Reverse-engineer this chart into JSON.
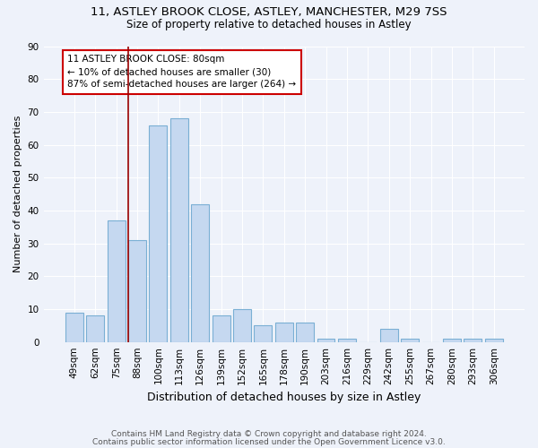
{
  "title1": "11, ASTLEY BROOK CLOSE, ASTLEY, MANCHESTER, M29 7SS",
  "title2": "Size of property relative to detached houses in Astley",
  "xlabel": "Distribution of detached houses by size in Astley",
  "ylabel": "Number of detached properties",
  "categories": [
    "49sqm",
    "62sqm",
    "75sqm",
    "88sqm",
    "100sqm",
    "113sqm",
    "126sqm",
    "139sqm",
    "152sqm",
    "165sqm",
    "178sqm",
    "190sqm",
    "203sqm",
    "216sqm",
    "229sqm",
    "242sqm",
    "255sqm",
    "267sqm",
    "280sqm",
    "293sqm",
    "306sqm"
  ],
  "values": [
    9,
    8,
    37,
    31,
    66,
    68,
    42,
    8,
    10,
    5,
    6,
    6,
    1,
    1,
    0,
    4,
    1,
    0,
    1,
    1,
    1
  ],
  "bar_color": "#c5d8f0",
  "bar_edge_color": "#7aafd4",
  "vline_color": "#990000",
  "annotation_text": "11 ASTLEY BROOK CLOSE: 80sqm\n← 10% of detached houses are smaller (30)\n87% of semi-detached houses are larger (264) →",
  "annotation_box_color": "#ffffff",
  "annotation_box_edge": "#cc0000",
  "ylim": [
    0,
    90
  ],
  "yticks": [
    0,
    10,
    20,
    30,
    40,
    50,
    60,
    70,
    80,
    90
  ],
  "footer1": "Contains HM Land Registry data © Crown copyright and database right 2024.",
  "footer2": "Contains public sector information licensed under the Open Government Licence v3.0.",
  "background_color": "#eef2fa",
  "grid_color": "#ffffff",
  "title1_fontsize": 9.5,
  "title2_fontsize": 8.5,
  "xlabel_fontsize": 9,
  "ylabel_fontsize": 8,
  "tick_fontsize": 7.5,
  "footer_fontsize": 6.5,
  "vline_x_index": 2.5
}
